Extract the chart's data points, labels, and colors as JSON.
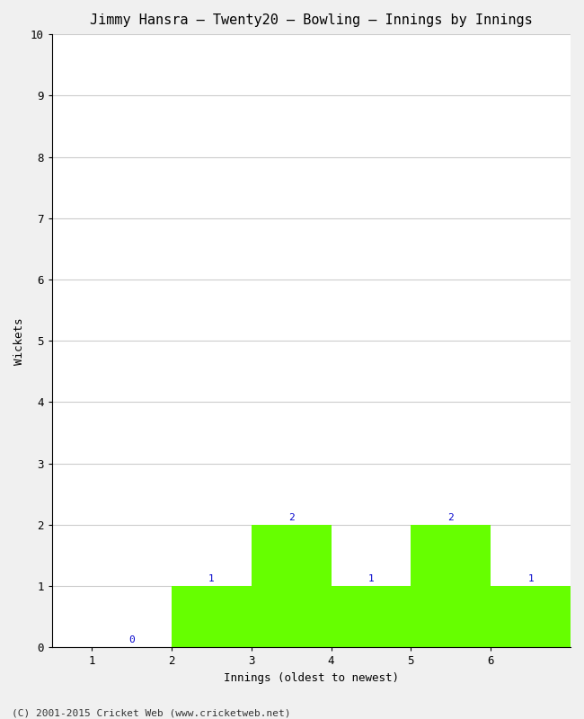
{
  "title": "Jimmy Hansra – Twenty20 – Bowling – Innings by Innings",
  "xlabel": "Innings (oldest to newest)",
  "ylabel": "Wickets",
  "categories": [
    1,
    2,
    3,
    4,
    5,
    6
  ],
  "values": [
    0,
    1,
    2,
    1,
    2,
    1
  ],
  "bar_color": "#66ff00",
  "bar_edge_color": "#66ff00",
  "ylim": [
    0,
    10
  ],
  "yticks": [
    0,
    1,
    2,
    3,
    4,
    5,
    6,
    7,
    8,
    9,
    10
  ],
  "xticks": [
    1,
    2,
    3,
    4,
    5,
    6
  ],
  "xlim": [
    0.5,
    7.0
  ],
  "label_color": "#0000cc",
  "label_fontsize": 8,
  "axis_fontsize": 9,
  "title_fontsize": 11,
  "bg_color": "#f0f0f0",
  "plot_bg_color": "#ffffff",
  "footer": "(C) 2001-2015 Cricket Web (www.cricketweb.net)",
  "footer_fontsize": 8,
  "grid_color": "#cccccc",
  "bar_width": 1.0
}
